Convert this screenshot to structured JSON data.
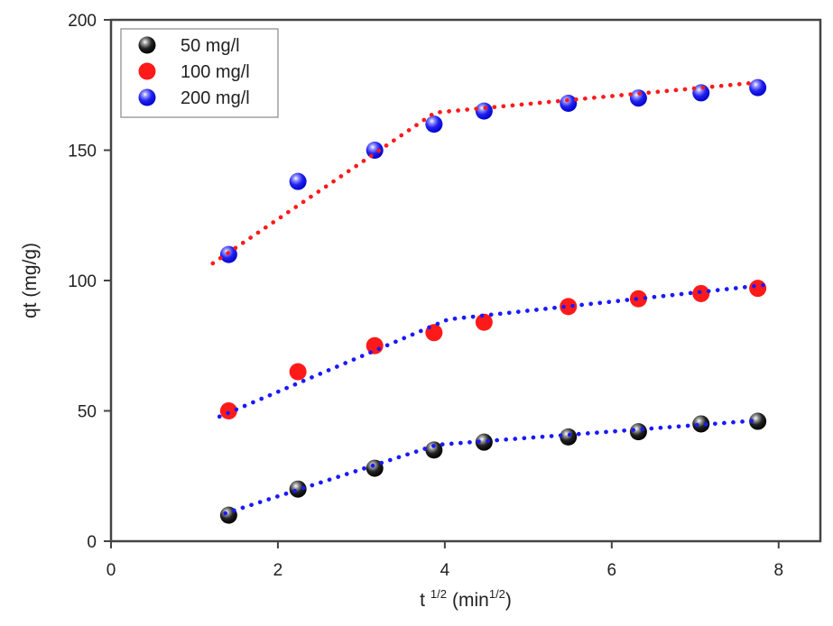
{
  "chart_data": {
    "type": "scatter",
    "title": "",
    "xlabel": "t",
    "xlabel_superscript": "1/2",
    "xlabel_unit_open": "(min",
    "xlabel_unit_superscript": "1/2",
    "xlabel_unit_close": ")",
    "ylabel": "qt (mg/g)",
    "xlim": [
      0,
      8.5
    ],
    "ylim": [
      0,
      200
    ],
    "xticks": [
      0,
      2,
      4,
      6,
      8
    ],
    "xtick_labels": [
      "0",
      "2",
      "4",
      "6",
      "8"
    ],
    "yticks": [
      0,
      50,
      100,
      150,
      200
    ],
    "ytick_labels": [
      "0",
      "50",
      "100",
      "150",
      "200"
    ],
    "grid": false,
    "legend_position": "top-left",
    "series": [
      {
        "name": "50 mg/l",
        "color": "#111111",
        "marker": "shaded-sphere",
        "x": [
          1.41,
          2.24,
          3.16,
          3.87,
          4.47,
          5.48,
          6.32,
          7.07,
          7.75
        ],
        "y": [
          10,
          20,
          28,
          35,
          38,
          40,
          42,
          45,
          46
        ],
        "fit_color": "#1a1aff",
        "fit_x": [
          1.37,
          3.91,
          7.78
        ],
        "fit_y": [
          10.7,
          37.0,
          46.4
        ]
      },
      {
        "name": "100 mg/l",
        "color": "#ff1a1a",
        "marker": "flat-circle",
        "x": [
          1.41,
          2.24,
          3.16,
          3.87,
          4.47,
          5.48,
          6.32,
          7.07,
          7.75
        ],
        "y": [
          50,
          65,
          75,
          80,
          84,
          90,
          93,
          95,
          97
        ],
        "fit_color": "#1a1aff",
        "fit_x": [
          1.3,
          4.04,
          7.84
        ],
        "fit_y": [
          47.8,
          85.1,
          98.3
        ]
      },
      {
        "name": "200 mg/l",
        "color": "#1a1aee",
        "marker": "shaded-sphere",
        "x": [
          1.41,
          2.24,
          3.16,
          3.87,
          4.47,
          5.48,
          6.32,
          7.07,
          7.75
        ],
        "y": [
          110,
          138,
          150,
          160,
          165,
          168,
          170,
          172,
          174
        ],
        "fit_color": "#ff1a1a",
        "fit_x": [
          1.22,
          3.88,
          7.69
        ],
        "fit_y": [
          106.6,
          164.4,
          175.8
        ]
      }
    ]
  }
}
